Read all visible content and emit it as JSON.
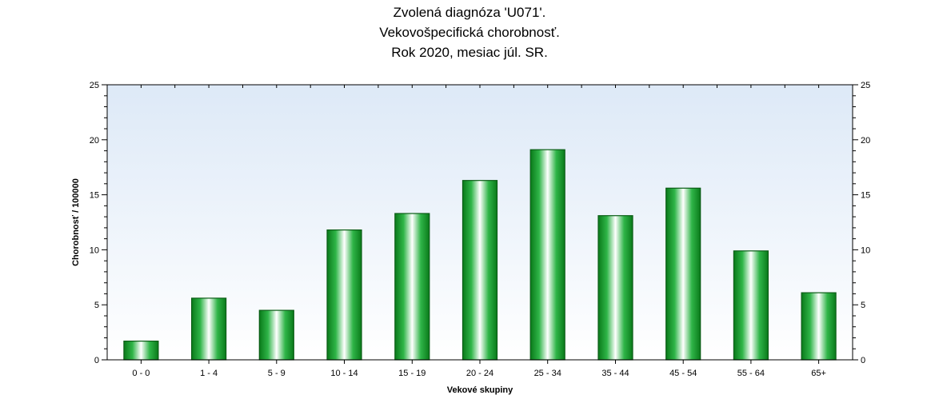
{
  "chart_data": {
    "type": "bar",
    "title_lines": [
      "Zvolená diagnóza 'U071'.",
      "Vekovošpecifická chorobnosť.",
      "Rok 2020, mesiac júl. SR."
    ],
    "xlabel": "Vekové skupiny",
    "ylabel": "Chorobnosť / 100000",
    "categories": [
      "0 - 0",
      "1 - 4",
      "5 - 9",
      "10 - 14",
      "15 - 19",
      "20 - 24",
      "25 - 34",
      "35 - 44",
      "45 - 54",
      "55 - 64",
      "65+"
    ],
    "values": [
      1.7,
      5.6,
      4.5,
      11.8,
      13.3,
      16.3,
      19.1,
      13.1,
      15.6,
      9.9,
      6.1
    ],
    "ylim": [
      0,
      25
    ],
    "yticks": [
      0,
      5,
      10,
      15,
      20,
      25
    ],
    "secondary_y_axis": true,
    "grid": false,
    "colors": {
      "bar_edge": "#0b5d16",
      "bar_dark": "#0a7a1a",
      "bar_mid": "#2fb548",
      "bar_light": "#ffffff",
      "plot_bg_top": "#dde9f7",
      "plot_bg_bottom": "#ffffff",
      "axis": "#000000"
    }
  }
}
